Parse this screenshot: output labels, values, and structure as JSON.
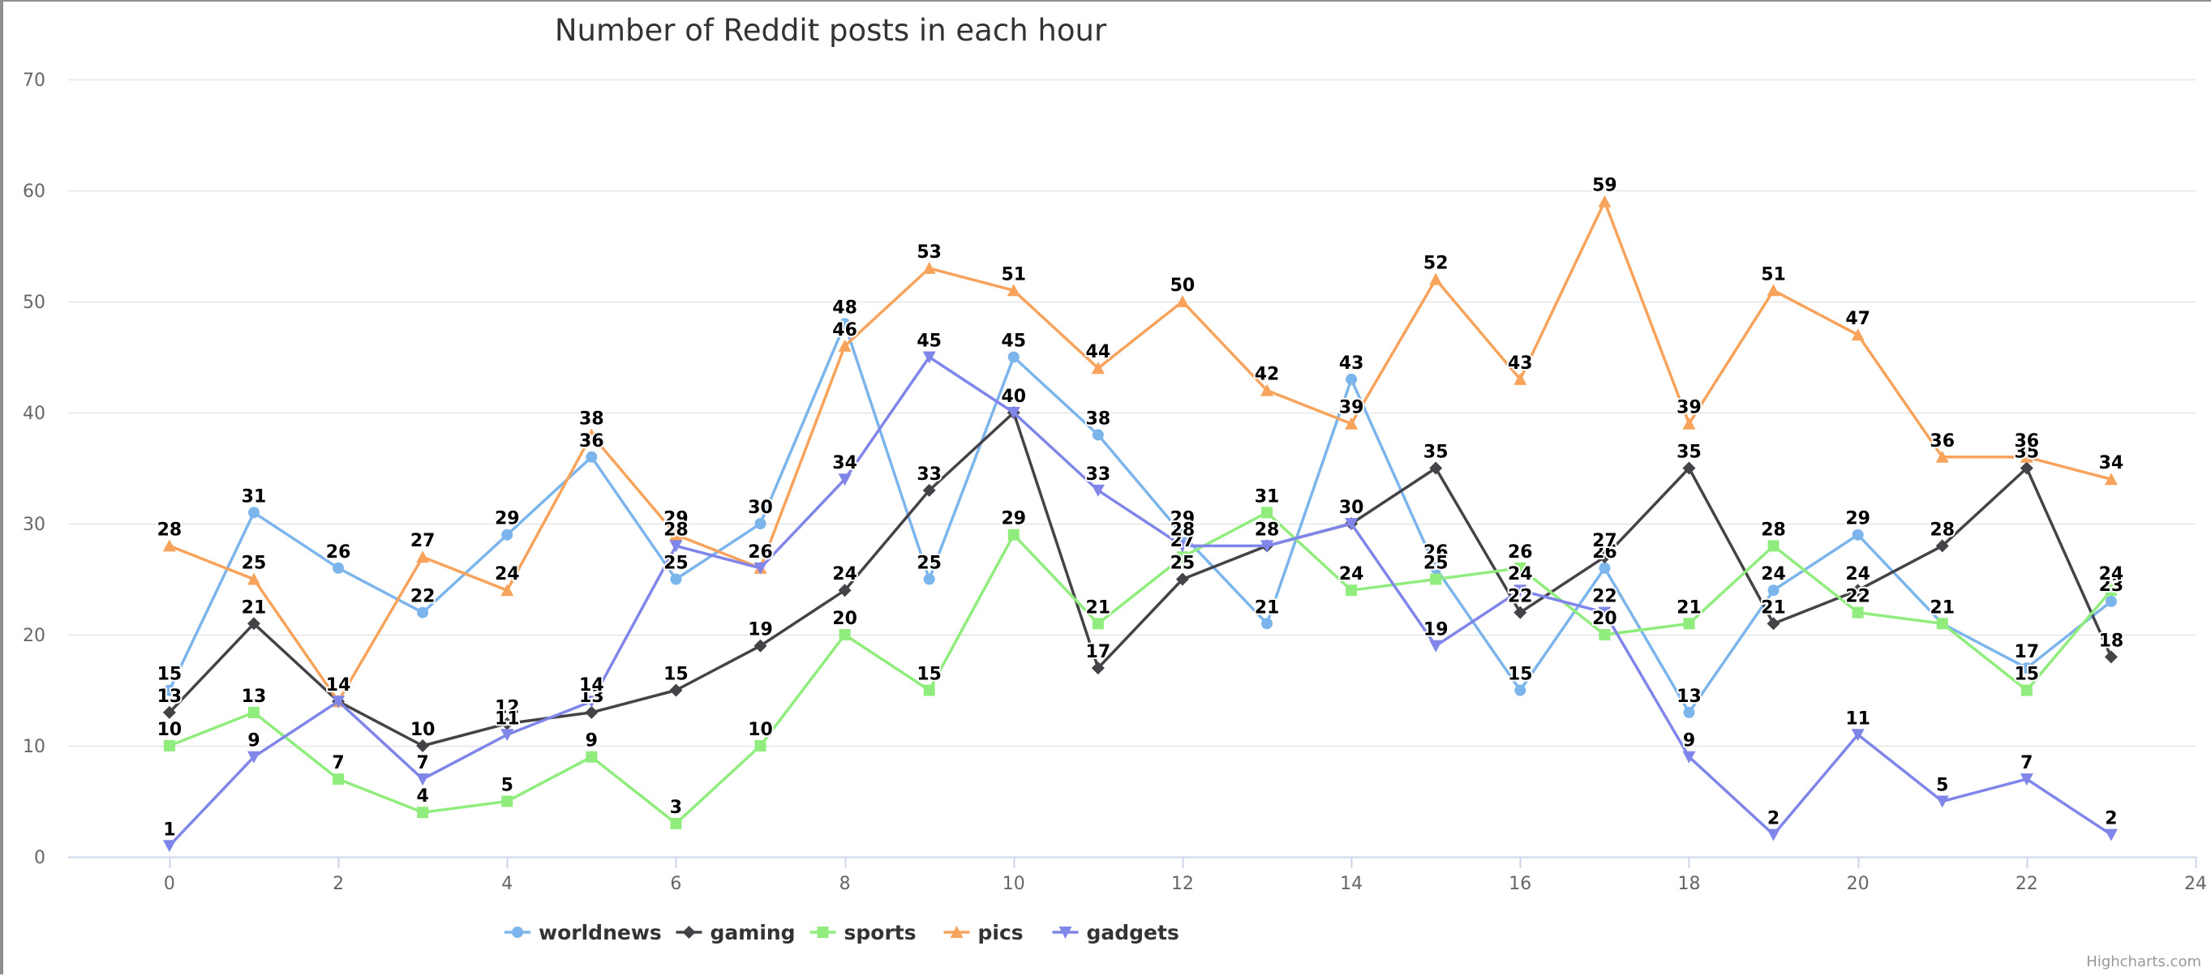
{
  "chart_data": {
    "type": "line",
    "title": "Number of Reddit posts in each hour",
    "xlabel": "",
    "ylabel": "",
    "x": [
      0,
      1,
      2,
      3,
      4,
      5,
      6,
      7,
      8,
      9,
      10,
      11,
      12,
      13,
      14,
      15,
      16,
      17,
      18,
      19,
      20,
      21,
      22,
      23
    ],
    "xlim": [
      -1.2,
      24
    ],
    "ylim": [
      0,
      70
    ],
    "x_ticks": [
      0,
      2,
      4,
      6,
      8,
      10,
      12,
      14,
      16,
      18,
      20,
      22,
      24
    ],
    "y_ticks": [
      0,
      10,
      20,
      30,
      40,
      50,
      60,
      70
    ],
    "grid": "horizontal",
    "legend_position": "bottom-center",
    "data_labels": true,
    "series": [
      {
        "name": "worldnews",
        "color": "#7cb5ec",
        "marker": "circle",
        "values": [
          15,
          31,
          26,
          22,
          29,
          36,
          25,
          30,
          48,
          25,
          45,
          38,
          29,
          21,
          43,
          26,
          15,
          26,
          13,
          24,
          29,
          21,
          17,
          23
        ]
      },
      {
        "name": "gaming",
        "color": "#434348",
        "marker": "diamond",
        "values": [
          13,
          21,
          14,
          10,
          12,
          13,
          15,
          19,
          24,
          33,
          40,
          17,
          25,
          28,
          30,
          35,
          22,
          27,
          35,
          21,
          24,
          28,
          35,
          18
        ]
      },
      {
        "name": "sports",
        "color": "#90ed7d",
        "marker": "square",
        "values": [
          10,
          13,
          7,
          4,
          5,
          9,
          3,
          10,
          20,
          15,
          29,
          21,
          27,
          31,
          24,
          25,
          26,
          20,
          21,
          28,
          22,
          21,
          15,
          24
        ]
      },
      {
        "name": "pics",
        "color": "#f7a35c",
        "marker": "triangle",
        "values": [
          28,
          25,
          14,
          27,
          24,
          38,
          29,
          26,
          46,
          53,
          51,
          44,
          50,
          42,
          39,
          52,
          43,
          59,
          39,
          51,
          47,
          36,
          36,
          34
        ]
      },
      {
        "name": "gadgets",
        "color": "#8085e9",
        "marker": "triangle-down",
        "values": [
          1,
          9,
          14,
          7,
          11,
          14,
          28,
          26,
          34,
          45,
          40,
          33,
          28,
          28,
          30,
          19,
          24,
          22,
          9,
          2,
          11,
          5,
          7,
          2
        ]
      }
    ],
    "credits": "Highcharts.com"
  }
}
